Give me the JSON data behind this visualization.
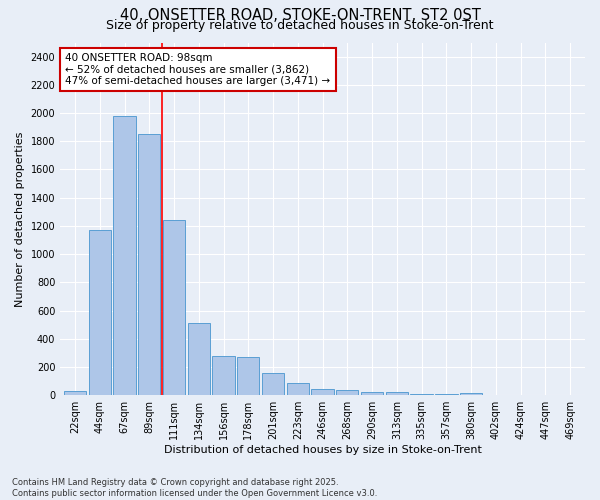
{
  "title1": "40, ONSETTER ROAD, STOKE-ON-TRENT, ST2 0ST",
  "title2": "Size of property relative to detached houses in Stoke-on-Trent",
  "xlabel": "Distribution of detached houses by size in Stoke-on-Trent",
  "ylabel": "Number of detached properties",
  "categories": [
    "22sqm",
    "44sqm",
    "67sqm",
    "89sqm",
    "111sqm",
    "134sqm",
    "156sqm",
    "178sqm",
    "201sqm",
    "223sqm",
    "246sqm",
    "268sqm",
    "290sqm",
    "313sqm",
    "335sqm",
    "357sqm",
    "380sqm",
    "402sqm",
    "424sqm",
    "447sqm",
    "469sqm"
  ],
  "values": [
    30,
    1170,
    1980,
    1850,
    1240,
    510,
    275,
    270,
    155,
    90,
    47,
    40,
    25,
    22,
    10,
    8,
    15,
    3,
    5,
    3,
    3
  ],
  "bar_color": "#aec6e8",
  "bar_edge_color": "#5a9fd4",
  "background_color": "#e8eef7",
  "grid_color": "#ffffff",
  "red_line_x": 3.5,
  "annotation_text": "40 ONSETTER ROAD: 98sqm\n← 52% of detached houses are smaller (3,862)\n47% of semi-detached houses are larger (3,471) →",
  "annotation_box_color": "#ffffff",
  "annotation_box_edge_color": "#cc0000",
  "ylim": [
    0,
    2500
  ],
  "yticks": [
    0,
    200,
    400,
    600,
    800,
    1000,
    1200,
    1400,
    1600,
    1800,
    2000,
    2200,
    2400
  ],
  "footnote": "Contains HM Land Registry data © Crown copyright and database right 2025.\nContains public sector information licensed under the Open Government Licence v3.0.",
  "title_fontsize": 10.5,
  "subtitle_fontsize": 9,
  "axis_label_fontsize": 8,
  "tick_fontsize": 7,
  "annotation_fontsize": 7.5,
  "footnote_fontsize": 6
}
